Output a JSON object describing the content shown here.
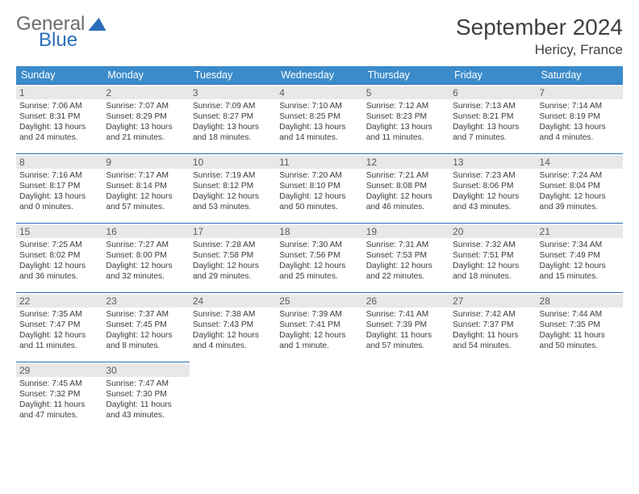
{
  "logo": {
    "top": "General",
    "bottom": "Blue"
  },
  "title": "September 2024",
  "location": "Hericy, France",
  "header_bg": "#3b8bca",
  "rule_color": "#2a6db8",
  "daynum_bg": "#e8e8e8",
  "weekdays": [
    "Sunday",
    "Monday",
    "Tuesday",
    "Wednesday",
    "Thursday",
    "Friday",
    "Saturday"
  ],
  "days": [
    {
      "n": 1,
      "sr": "7:06 AM",
      "ss": "8:31 PM",
      "dl": "13 hours and 24 minutes."
    },
    {
      "n": 2,
      "sr": "7:07 AM",
      "ss": "8:29 PM",
      "dl": "13 hours and 21 minutes."
    },
    {
      "n": 3,
      "sr": "7:09 AM",
      "ss": "8:27 PM",
      "dl": "13 hours and 18 minutes."
    },
    {
      "n": 4,
      "sr": "7:10 AM",
      "ss": "8:25 PM",
      "dl": "13 hours and 14 minutes."
    },
    {
      "n": 5,
      "sr": "7:12 AM",
      "ss": "8:23 PM",
      "dl": "13 hours and 11 minutes."
    },
    {
      "n": 6,
      "sr": "7:13 AM",
      "ss": "8:21 PM",
      "dl": "13 hours and 7 minutes."
    },
    {
      "n": 7,
      "sr": "7:14 AM",
      "ss": "8:19 PM",
      "dl": "13 hours and 4 minutes."
    },
    {
      "n": 8,
      "sr": "7:16 AM",
      "ss": "8:17 PM",
      "dl": "13 hours and 0 minutes."
    },
    {
      "n": 9,
      "sr": "7:17 AM",
      "ss": "8:14 PM",
      "dl": "12 hours and 57 minutes."
    },
    {
      "n": 10,
      "sr": "7:19 AM",
      "ss": "8:12 PM",
      "dl": "12 hours and 53 minutes."
    },
    {
      "n": 11,
      "sr": "7:20 AM",
      "ss": "8:10 PM",
      "dl": "12 hours and 50 minutes."
    },
    {
      "n": 12,
      "sr": "7:21 AM",
      "ss": "8:08 PM",
      "dl": "12 hours and 46 minutes."
    },
    {
      "n": 13,
      "sr": "7:23 AM",
      "ss": "8:06 PM",
      "dl": "12 hours and 43 minutes."
    },
    {
      "n": 14,
      "sr": "7:24 AM",
      "ss": "8:04 PM",
      "dl": "12 hours and 39 minutes."
    },
    {
      "n": 15,
      "sr": "7:25 AM",
      "ss": "8:02 PM",
      "dl": "12 hours and 36 minutes."
    },
    {
      "n": 16,
      "sr": "7:27 AM",
      "ss": "8:00 PM",
      "dl": "12 hours and 32 minutes."
    },
    {
      "n": 17,
      "sr": "7:28 AM",
      "ss": "7:58 PM",
      "dl": "12 hours and 29 minutes."
    },
    {
      "n": 18,
      "sr": "7:30 AM",
      "ss": "7:56 PM",
      "dl": "12 hours and 25 minutes."
    },
    {
      "n": 19,
      "sr": "7:31 AM",
      "ss": "7:53 PM",
      "dl": "12 hours and 22 minutes."
    },
    {
      "n": 20,
      "sr": "7:32 AM",
      "ss": "7:51 PM",
      "dl": "12 hours and 18 minutes."
    },
    {
      "n": 21,
      "sr": "7:34 AM",
      "ss": "7:49 PM",
      "dl": "12 hours and 15 minutes."
    },
    {
      "n": 22,
      "sr": "7:35 AM",
      "ss": "7:47 PM",
      "dl": "12 hours and 11 minutes."
    },
    {
      "n": 23,
      "sr": "7:37 AM",
      "ss": "7:45 PM",
      "dl": "12 hours and 8 minutes."
    },
    {
      "n": 24,
      "sr": "7:38 AM",
      "ss": "7:43 PM",
      "dl": "12 hours and 4 minutes."
    },
    {
      "n": 25,
      "sr": "7:39 AM",
      "ss": "7:41 PM",
      "dl": "12 hours and 1 minute."
    },
    {
      "n": 26,
      "sr": "7:41 AM",
      "ss": "7:39 PM",
      "dl": "11 hours and 57 minutes."
    },
    {
      "n": 27,
      "sr": "7:42 AM",
      "ss": "7:37 PM",
      "dl": "11 hours and 54 minutes."
    },
    {
      "n": 28,
      "sr": "7:44 AM",
      "ss": "7:35 PM",
      "dl": "11 hours and 50 minutes."
    },
    {
      "n": 29,
      "sr": "7:45 AM",
      "ss": "7:32 PM",
      "dl": "11 hours and 47 minutes."
    },
    {
      "n": 30,
      "sr": "7:47 AM",
      "ss": "7:30 PM",
      "dl": "11 hours and 43 minutes."
    }
  ],
  "labels": {
    "sunrise": "Sunrise:",
    "sunset": "Sunset:",
    "daylight": "Daylight:"
  },
  "grid": {
    "first_weekday_index": 0,
    "rows": 5,
    "cols": 7
  }
}
